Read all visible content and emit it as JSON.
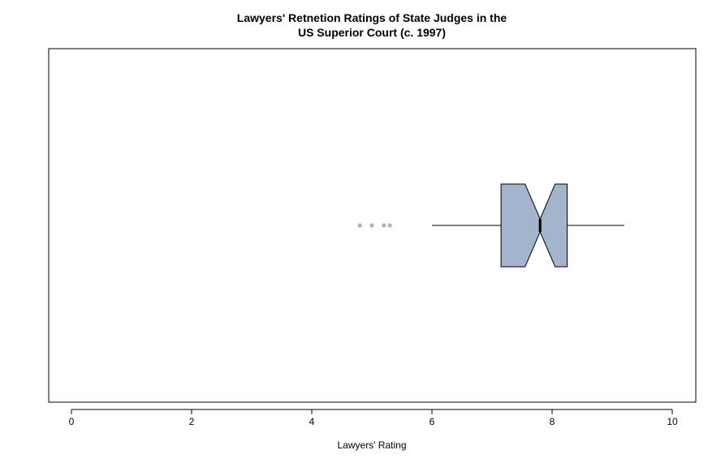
{
  "chart_data": {
    "type": "boxplot",
    "orientation": "horizontal",
    "notched": true,
    "title_lines": [
      "Lawyers' Retnetion Ratings of State Judges in the",
      "US Superior Court (c. 1997)"
    ],
    "xlabel": "Lawyers' Rating",
    "ylabel": "",
    "xlim": [
      0,
      10
    ],
    "x_ticks": [
      0,
      2,
      4,
      6,
      8,
      10
    ],
    "x_tick_labels": [
      "0",
      "2",
      "4",
      "6",
      "8",
      "10"
    ],
    "box": {
      "whisker_low": 6.0,
      "q1": 7.15,
      "notch_low": 7.55,
      "median": 7.8,
      "notch_high": 8.05,
      "q3": 8.25,
      "whisker_high": 9.2
    },
    "outliers": [
      4.8,
      5.0,
      5.2,
      5.3
    ],
    "colors": {
      "box_fill": "#a2b5cd",
      "outlier": "#a2b5cd",
      "line": "#000000"
    },
    "grid": false
  }
}
